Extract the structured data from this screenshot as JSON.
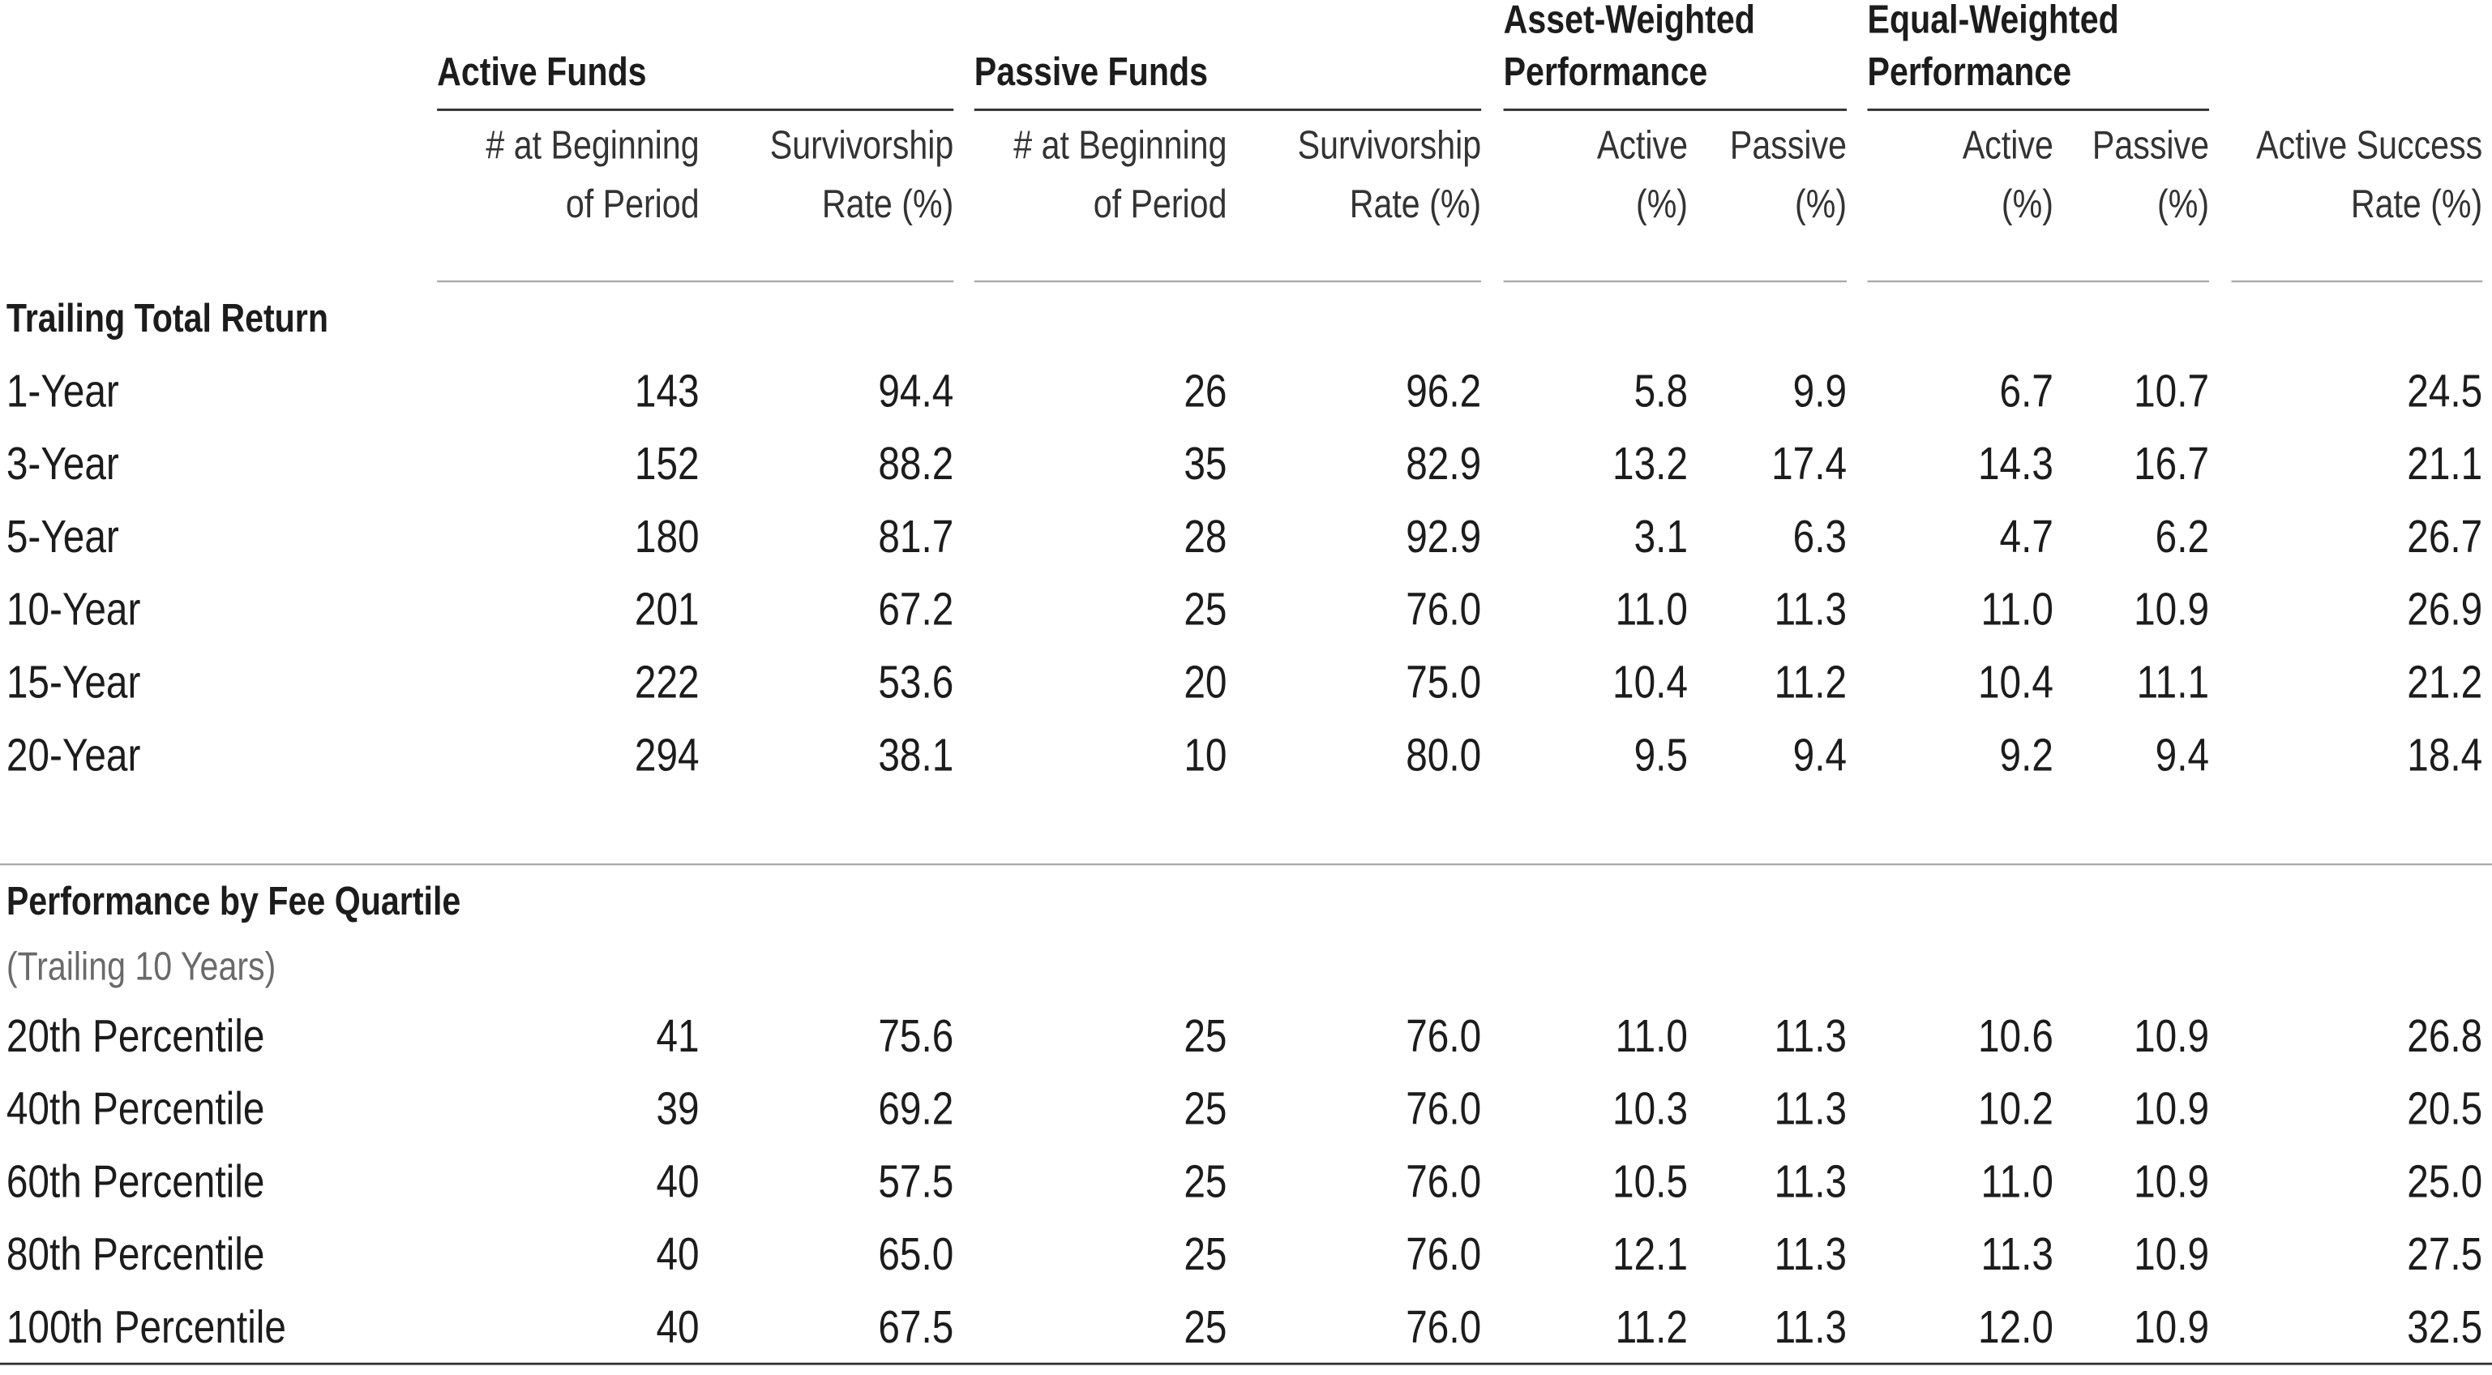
{
  "table": {
    "groups": [
      [
        "Active Funds"
      ],
      [
        "Passive Funds"
      ],
      [
        "Asset-Weighted",
        "Performance"
      ],
      [
        "Equal-Weighted",
        "Performance"
      ]
    ],
    "columns": [
      [
        "# at Beginning",
        "of Period"
      ],
      [
        "Survivorship",
        "Rate (%)"
      ],
      [
        "# at Beginning",
        "of Period"
      ],
      [
        "Survivorship",
        "Rate (%)"
      ],
      [
        "Active",
        "(%)"
      ],
      [
        "Passive",
        "(%)"
      ],
      [
        "Active",
        "(%)"
      ],
      [
        "Passive",
        "(%)"
      ],
      [
        "Active Success",
        "Rate (%)"
      ]
    ],
    "sections": [
      {
        "title": "Trailing Total Return",
        "rows": [
          [
            "1-Year",
            "143",
            "94.4",
            "26",
            "96.2",
            "5.8",
            "9.9",
            "6.7",
            "10.7",
            "24.5"
          ],
          [
            "3-Year",
            "152",
            "88.2",
            "35",
            "82.9",
            "13.2",
            "17.4",
            "14.3",
            "16.7",
            "21.1"
          ],
          [
            "5-Year",
            "180",
            "81.7",
            "28",
            "92.9",
            "3.1",
            "6.3",
            "4.7",
            "6.2",
            "26.7"
          ],
          [
            "10-Year",
            "201",
            "67.2",
            "25",
            "76.0",
            "11.0",
            "11.3",
            "11.0",
            "10.9",
            "26.9"
          ],
          [
            "15-Year",
            "222",
            "53.6",
            "20",
            "75.0",
            "10.4",
            "11.2",
            "10.4",
            "11.1",
            "21.2"
          ],
          [
            "20-Year",
            "294",
            "38.1",
            "10",
            "80.0",
            "9.5",
            "9.4",
            "9.2",
            "9.4",
            "18.4"
          ]
        ]
      },
      {
        "title": "Performance by Fee Quartile",
        "subtitle": "(Trailing 10 Years)",
        "rows": [
          [
            "20th Percentile",
            "41",
            "75.6",
            "25",
            "76.0",
            "11.0",
            "11.3",
            "10.6",
            "10.9",
            "26.8"
          ],
          [
            "40th Percentile",
            "39",
            "69.2",
            "25",
            "76.0",
            "10.3",
            "11.3",
            "10.2",
            "10.9",
            "20.5"
          ],
          [
            "60th Percentile",
            "40",
            "57.5",
            "25",
            "76.0",
            "10.5",
            "11.3",
            "11.0",
            "10.9",
            "25.0"
          ],
          [
            "80th Percentile",
            "40",
            "65.0",
            "25",
            "76.0",
            "12.1",
            "11.3",
            "11.3",
            "10.9",
            "27.5"
          ],
          [
            "100th Percentile",
            "40",
            "67.5",
            "25",
            "76.0",
            "11.2",
            "11.3",
            "12.0",
            "10.9",
            "32.5"
          ]
        ]
      }
    ]
  }
}
